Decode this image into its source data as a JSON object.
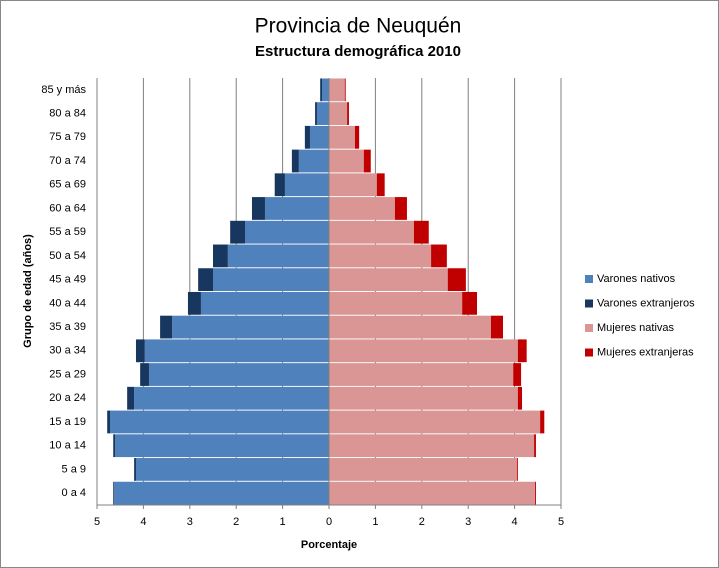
{
  "chart_data": {
    "type": "bar",
    "orientation": "horizontal",
    "stacked": true,
    "title": "Provincia de Neuquén",
    "subtitle": "Estructura demográfica 2010",
    "xlabel": "Porcentaje",
    "ylabel": "Grupo de edad (años)",
    "categories": [
      "0 a 4",
      "5 a 9",
      "10 a 14",
      "15 a 19",
      "20 a 24",
      "25 a 29",
      "30 a 34",
      "35 a 39",
      "40 a 44",
      "45 a 49",
      "50 a 54",
      "55 a 59",
      "60 a 64",
      "65 a 69",
      "70 a 74",
      "75 a 79",
      "80 a 84",
      "85 y más"
    ],
    "series": [
      {
        "name": "Varones nativos",
        "color": "#4f81bd",
        "values": [
          -4.63,
          -4.16,
          -4.61,
          -4.72,
          -4.2,
          -3.88,
          -3.97,
          -3.38,
          -2.76,
          -2.5,
          -2.18,
          -1.81,
          -1.38,
          -0.95,
          -0.65,
          -0.41,
          -0.26,
          -0.15
        ]
      },
      {
        "name": "Varones extranjeros",
        "color": "#17375e",
        "values": [
          -0.02,
          -0.04,
          -0.04,
          -0.06,
          -0.15,
          -0.19,
          -0.19,
          -0.26,
          -0.28,
          -0.32,
          -0.32,
          -0.32,
          -0.28,
          -0.22,
          -0.15,
          -0.11,
          -0.04,
          -0.04
        ]
      },
      {
        "name": "Mujeres nativas",
        "color": "#d99694",
        "values": [
          4.44,
          4.05,
          4.42,
          4.55,
          4.07,
          3.97,
          4.07,
          3.49,
          2.87,
          2.56,
          2.2,
          1.83,
          1.42,
          1.03,
          0.75,
          0.56,
          0.39,
          0.34
        ]
      },
      {
        "name": "Mujeres extranjeras",
        "color": "#c00000",
        "values": [
          0.02,
          0.02,
          0.04,
          0.09,
          0.09,
          0.17,
          0.19,
          0.26,
          0.32,
          0.39,
          0.34,
          0.32,
          0.26,
          0.17,
          0.15,
          0.09,
          0.04,
          0.02
        ]
      }
    ],
    "xlim": [
      -5,
      5
    ],
    "xticks": [
      {
        "value": -5,
        "label": "5"
      },
      {
        "value": -4,
        "label": "4"
      },
      {
        "value": -3,
        "label": "3"
      },
      {
        "value": -2,
        "label": "2"
      },
      {
        "value": -1,
        "label": "1"
      },
      0,
      1,
      2,
      3,
      4,
      5
    ],
    "grid": true,
    "legend": "right"
  }
}
